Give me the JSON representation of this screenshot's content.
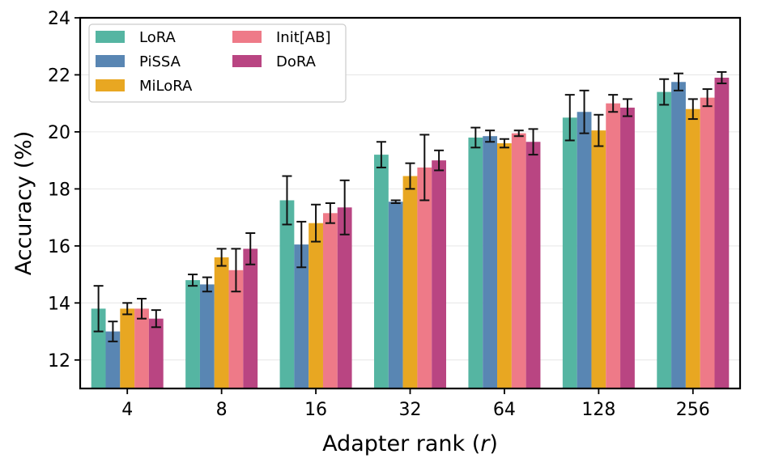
{
  "chart_data": {
    "type": "bar",
    "xlabel": "Adapter rank (",
    "xlabel_var": "r",
    "xlabel_end": ")",
    "ylabel": "Accuracy (%)",
    "ylim": [
      11,
      24
    ],
    "yticks": [
      "12",
      "14",
      "16",
      "18",
      "20",
      "22",
      "24"
    ],
    "ytick_values": [
      12,
      14,
      16,
      18,
      20,
      22,
      24
    ],
    "categories": [
      "4",
      "8",
      "16",
      "32",
      "64",
      "128",
      "256"
    ],
    "grid": "horizontal",
    "legend_position": "top-left",
    "series": [
      {
        "name": "LoRA",
        "color": "#55b5a2",
        "values": [
          13.8,
          14.8,
          17.6,
          19.2,
          19.8,
          20.5,
          21.4
        ],
        "errors": [
          0.8,
          0.2,
          0.85,
          0.45,
          0.35,
          0.8,
          0.45
        ]
      },
      {
        "name": "PiSSA",
        "color": "#5986b3",
        "values": [
          13.0,
          14.65,
          16.05,
          17.55,
          19.85,
          20.7,
          21.75
        ],
        "errors": [
          0.35,
          0.25,
          0.8,
          0.05,
          0.2,
          0.75,
          0.3
        ]
      },
      {
        "name": "MiLoRA",
        "color": "#e8a722",
        "values": [
          13.8,
          15.6,
          16.8,
          18.45,
          19.6,
          20.05,
          20.8
        ],
        "errors": [
          0.2,
          0.3,
          0.65,
          0.45,
          0.15,
          0.55,
          0.35
        ]
      },
      {
        "name": "Init[AB]",
        "color": "#ee7a88",
        "values": [
          13.8,
          15.15,
          17.15,
          18.75,
          19.95,
          21.0,
          21.2
        ],
        "errors": [
          0.35,
          0.75,
          0.35,
          1.15,
          0.1,
          0.3,
          0.3
        ]
      },
      {
        "name": "DoRA",
        "color": "#b94582",
        "values": [
          13.45,
          15.9,
          17.35,
          19.0,
          19.65,
          20.85,
          21.9
        ],
        "errors": [
          0.3,
          0.55,
          0.95,
          0.35,
          0.45,
          0.3,
          0.2
        ]
      }
    ]
  }
}
